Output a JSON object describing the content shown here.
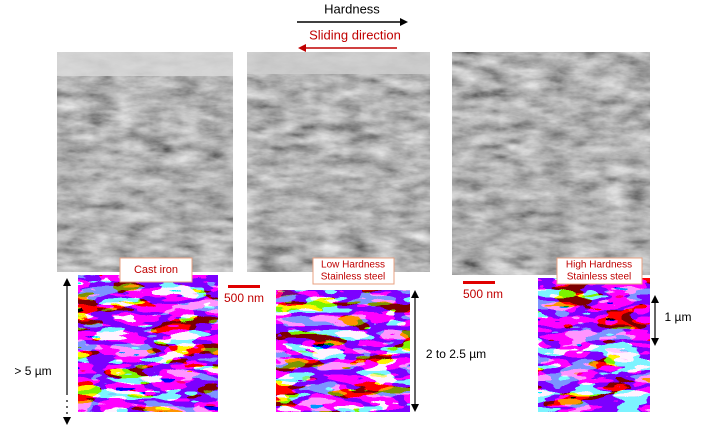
{
  "header": {
    "hardness": "Hardness",
    "sliding_direction": "Sliding direction"
  },
  "panels": [
    {
      "label": [
        "Cast iron"
      ],
      "depth": "> 5 µm"
    },
    {
      "label": [
        "Low Hardness",
        "Stainless steel"
      ],
      "depth": "2 to 2.5 µm"
    },
    {
      "label": [
        "High Hardness",
        "Stainless steel"
      ],
      "depth": "1 µm"
    }
  ],
  "scale_bars": [
    "500 nm",
    "500 nm"
  ]
}
